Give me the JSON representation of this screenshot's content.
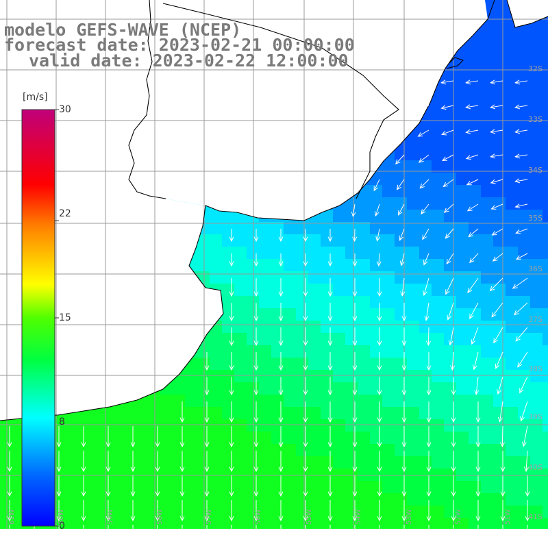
{
  "title": {
    "line1": "modelo GEFS-WAVE (NCEP)",
    "line2": "forecast date: 2023-02-21 00:00:00",
    "line3": "valid date: 2023-02-22 12:00:00"
  },
  "colorbar": {
    "unit": "[m/s]",
    "ticks": [
      "30",
      "22",
      "15",
      "8",
      "0"
    ],
    "tick_values": [
      30,
      22,
      15,
      8,
      0
    ],
    "range": [
      0,
      30
    ],
    "colors": [
      "#0000ff",
      "#0050ff",
      "#00a0ff",
      "#00ffff",
      "#00ff80",
      "#00ff00",
      "#90ff00",
      "#ffff00",
      "#ff9000",
      "#ff0000",
      "#e00060",
      "#c00080"
    ]
  },
  "map": {
    "variable": "wind speed (m/s)",
    "grid_lon_labels": [
      "61W",
      "60W",
      "59W",
      "58W",
      "57W",
      "56W",
      "55W",
      "54W",
      "53W",
      "52W",
      "51W"
    ],
    "grid_lat_labels": [
      "32S",
      "33S",
      "34S",
      "35S",
      "36S",
      "37S",
      "38S",
      "39S",
      "40S",
      "41S"
    ],
    "colors": {
      "grid": "#9a9a9a",
      "land": "#ffffff",
      "coast": "#000000",
      "arrows": "#ffffff",
      "labels": "#a0a0a0"
    }
  }
}
